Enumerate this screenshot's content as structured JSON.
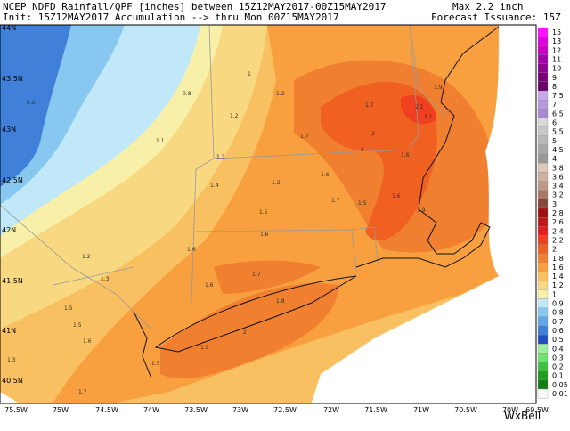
{
  "header": {
    "line1": "NCEP NDFD Rainfall/QPF [inches] between 15Z12MAY2017-00Z15MAY2017",
    "max": "Max 2.2 inch",
    "line2": "Init: 15Z12MAY2017 Accumulation --> thru Mon 00Z15MAY2017",
    "issuance": "Forecast Issuance: 15Z"
  },
  "lat_labels": [
    "44N",
    "43.5N",
    "43N",
    "42.5N",
    "42N",
    "41.5N",
    "41N",
    "40.5N"
  ],
  "lon_labels": [
    "75.5W",
    "75W",
    "74.5W",
    "74W",
    "73.5W",
    "73W",
    "72.5W",
    "72W",
    "71.5W",
    "71W",
    "70.5W",
    "70W",
    "69.5W"
  ],
  "legend": [
    {
      "value": 15,
      "color": "#ff10ff"
    },
    {
      "value": 13,
      "color": "#e000e0"
    },
    {
      "value": 12,
      "color": "#c800c8"
    },
    {
      "value": 11,
      "color": "#a800a8"
    },
    {
      "value": 10,
      "color": "#900090"
    },
    {
      "value": 9,
      "color": "#780078"
    },
    {
      "value": 8,
      "color": "#680068"
    },
    {
      "value": 7.5,
      "color": "#c8a8e8"
    },
    {
      "value": 7,
      "color": "#b898dc"
    },
    {
      "value": 6.5,
      "color": "#a888d0"
    },
    {
      "value": 6,
      "color": "#d8d8d8"
    },
    {
      "value": 5.5,
      "color": "#c8c8c8"
    },
    {
      "value": 5,
      "color": "#b8b8b8"
    },
    {
      "value": 4.5,
      "color": "#a8a8a8"
    },
    {
      "value": 4,
      "color": "#989898"
    },
    {
      "value": 3.8,
      "color": "#e0c8b8"
    },
    {
      "value": 3.6,
      "color": "#d0b0a0"
    },
    {
      "value": 3.4,
      "color": "#c09888"
    },
    {
      "value": 3.2,
      "color": "#a87868"
    },
    {
      "value": 3,
      "color": "#884838"
    },
    {
      "value": 2.8,
      "color": "#a01010"
    },
    {
      "value": 2.6,
      "color": "#c01818"
    },
    {
      "value": 2.4,
      "color": "#e02020"
    },
    {
      "value": 2.2,
      "color": "#f04020"
    },
    {
      "value": 2,
      "color": "#f06020"
    },
    {
      "value": 1.8,
      "color": "#f08030"
    },
    {
      "value": 1.6,
      "color": "#f8a040"
    },
    {
      "value": 1.4,
      "color": "#f8c060"
    },
    {
      "value": 1.2,
      "color": "#f8d880"
    },
    {
      "value": 1,
      "color": "#f8f0a8"
    },
    {
      "value": 0.9,
      "color": "#c0e8f8"
    },
    {
      "value": 0.8,
      "color": "#88c8f0"
    },
    {
      "value": 0.7,
      "color": "#60a8e8"
    },
    {
      "value": 0.6,
      "color": "#4080d8"
    },
    {
      "value": 0.5,
      "color": "#2050c0"
    },
    {
      "value": 0.4,
      "color": "#a0f0a0"
    },
    {
      "value": 0.3,
      "color": "#70e070"
    },
    {
      "value": 0.2,
      "color": "#40c040"
    },
    {
      "value": 0.1,
      "color": "#20a020"
    },
    {
      "value": 0.05,
      "color": "#108010"
    },
    {
      "value": 0.01,
      "color": "#f8f8f8"
    }
  ],
  "map_values": [
    0.6,
    0.8,
    1.0,
    1.2,
    1.1,
    1.2,
    1.2,
    1.9,
    2.1,
    2.1,
    1.7,
    1.7,
    2.0,
    2.0,
    1.6,
    1.3,
    1.4,
    1.5,
    1.7,
    1.6,
    1.5,
    1.6,
    1.9,
    1.6,
    1.2,
    1.6,
    1.3,
    1.6,
    1.7,
    1.5,
    1.8,
    1.9,
    2.0,
    1.5,
    1.5,
    1.6,
    1.3,
    1.7
  ],
  "brand": "WxBell"
}
